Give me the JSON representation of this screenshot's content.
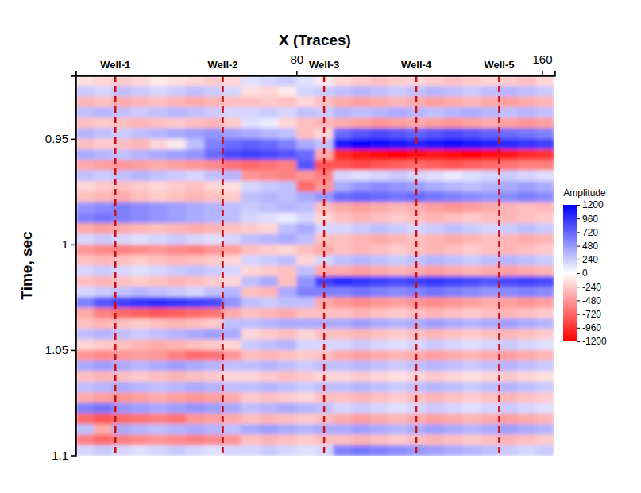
{
  "chart_data": {
    "type": "heatmap",
    "x_label": "X (Traces)",
    "y_label": "Time, sec",
    "xlim": [
      8,
      164
    ],
    "ylim": [
      0.92,
      1.1
    ],
    "xticks": [
      80,
      160
    ],
    "yticks": [
      0.95,
      1,
      1.05,
      1.1
    ],
    "x_bins": [
      8,
      14,
      20,
      26,
      32,
      38,
      44,
      50,
      56,
      62,
      68,
      74,
      80,
      86,
      92,
      98,
      104,
      110,
      116,
      122,
      128,
      134,
      140,
      146,
      152,
      158,
      164
    ],
    "y_bins": [
      0.92,
      0.925,
      0.93,
      0.935,
      0.94,
      0.945,
      0.95,
      0.955,
      0.96,
      0.965,
      0.97,
      0.975,
      0.98,
      0.985,
      0.99,
      0.995,
      1,
      1.005,
      1.01,
      1.015,
      1.02,
      1.025,
      1.03,
      1.035,
      1.04,
      1.045,
      1.05,
      1.055,
      1.06,
      1.065,
      1.07,
      1.075,
      1.08,
      1.085,
      1.09,
      1.095,
      1.1
    ],
    "z": [
      [
        -150,
        -200,
        -250,
        -200,
        -100,
        -150,
        -200,
        -250,
        -200,
        150,
        200,
        250,
        150,
        -100,
        -200,
        -250,
        -300,
        -250,
        -200,
        -250,
        -300,
        -250,
        -200,
        -250,
        -300,
        -200
      ],
      [
        250,
        200,
        300,
        250,
        200,
        250,
        300,
        250,
        200,
        -150,
        -200,
        -100,
        200,
        250,
        300,
        350,
        300,
        250,
        300,
        350,
        300,
        250,
        300,
        350,
        300,
        250
      ],
      [
        -350,
        -300,
        -400,
        -350,
        -300,
        -350,
        -400,
        -350,
        -300,
        -300,
        -250,
        -300,
        -200,
        -300,
        -400,
        -450,
        -400,
        -350,
        -400,
        -450,
        -400,
        -350,
        -400,
        -450,
        -400,
        -350
      ],
      [
        300,
        350,
        300,
        250,
        300,
        350,
        300,
        250,
        200,
        200,
        250,
        200,
        300,
        250,
        350,
        300,
        350,
        400,
        350,
        300,
        350,
        400,
        350,
        300,
        350,
        300
      ],
      [
        -300,
        -250,
        -300,
        -350,
        -300,
        -250,
        -300,
        -350,
        -250,
        150,
        100,
        -200,
        -300,
        -350,
        -400,
        -450,
        -500,
        -450,
        -400,
        -450,
        -500,
        -450,
        -400,
        -450,
        -500,
        -450
      ],
      [
        350,
        300,
        250,
        300,
        350,
        400,
        450,
        500,
        450,
        400,
        350,
        300,
        -300,
        -200,
        700,
        800,
        850,
        800,
        750,
        800,
        850,
        800,
        750,
        700,
        650,
        600
      ],
      [
        -300,
        -250,
        -300,
        -350,
        -200,
        -100,
        300,
        600,
        700,
        750,
        700,
        600,
        400,
        300,
        1100,
        1200,
        1150,
        1100,
        1050,
        1100,
        1150,
        1100,
        1050,
        1000,
        950,
        900
      ],
      [
        400,
        350,
        300,
        350,
        400,
        450,
        500,
        700,
        850,
        900,
        850,
        800,
        700,
        -400,
        -1000,
        -1100,
        -1150,
        -1200,
        -1150,
        -1100,
        -1150,
        -1200,
        -1150,
        -1100,
        -1000,
        -950
      ],
      [
        -400,
        -450,
        -500,
        -450,
        -400,
        -450,
        -500,
        -550,
        -650,
        -700,
        -650,
        -600,
        800,
        -800,
        -800,
        -850,
        -800,
        -750,
        -700,
        -750,
        -800,
        -750,
        -700,
        -650,
        -600,
        -600
      ],
      [
        300,
        250,
        300,
        350,
        300,
        250,
        200,
        300,
        350,
        -500,
        -550,
        -600,
        -500,
        -600,
        200,
        150,
        200,
        250,
        200,
        150,
        100,
        150,
        200,
        250,
        200,
        150
      ],
      [
        -200,
        -250,
        -300,
        -250,
        -200,
        -250,
        -300,
        -200,
        -150,
        200,
        250,
        300,
        -700,
        -500,
        400,
        500,
        550,
        500,
        450,
        400,
        350,
        300,
        350,
        400,
        450,
        400
      ],
      [
        -300,
        -350,
        -400,
        -300,
        -250,
        -300,
        -350,
        -300,
        -250,
        300,
        350,
        300,
        400,
        500,
        700,
        750,
        700,
        650,
        700,
        650,
        600,
        550,
        500,
        550,
        600,
        550
      ],
      [
        500,
        550,
        600,
        550,
        500,
        450,
        400,
        350,
        300,
        250,
        300,
        350,
        300,
        -300,
        -400,
        -450,
        -400,
        -350,
        -400,
        -450,
        -500,
        -450,
        -400,
        -350,
        -300,
        -350
      ],
      [
        600,
        650,
        600,
        550,
        500,
        450,
        400,
        350,
        300,
        200,
        150,
        100,
        200,
        -200,
        -300,
        -350,
        -300,
        -250,
        -300,
        -350,
        -300,
        -250,
        -300,
        -350,
        -300,
        -250
      ],
      [
        -400,
        -450,
        -400,
        -350,
        -300,
        -350,
        -400,
        -350,
        -300,
        -250,
        -200,
        300,
        400,
        200,
        200,
        250,
        300,
        250,
        200,
        250,
        300,
        250,
        200,
        250,
        300,
        250
      ],
      [
        200,
        250,
        200,
        150,
        200,
        250,
        200,
        150,
        200,
        300,
        350,
        400,
        300,
        -300,
        -300,
        -350,
        -400,
        -350,
        -300,
        -350,
        -400,
        -350,
        -300,
        -350,
        -400,
        -350
      ],
      [
        -500,
        -550,
        -600,
        -550,
        -500,
        -550,
        -600,
        -500,
        -450,
        -300,
        -250,
        -200,
        -300,
        -400,
        -300,
        -350,
        -300,
        -250,
        -300,
        -350,
        -300,
        -250,
        -300,
        -350,
        -300,
        -250
      ],
      [
        -300,
        -350,
        -300,
        -250,
        -300,
        -350,
        -300,
        -250,
        -200,
        200,
        250,
        300,
        -200,
        200,
        300,
        350,
        300,
        250,
        300,
        350,
        300,
        250,
        300,
        350,
        300,
        250
      ],
      [
        200,
        250,
        200,
        150,
        200,
        250,
        300,
        250,
        200,
        -200,
        -250,
        -300,
        300,
        -400,
        -400,
        -450,
        -400,
        -350,
        -400,
        -450,
        -400,
        -350,
        -400,
        -450,
        -400,
        -350
      ],
      [
        -300,
        -350,
        -300,
        -250,
        -300,
        -350,
        -300,
        -250,
        -200,
        300,
        400,
        -300,
        500,
        900,
        1000,
        950,
        900,
        850,
        900,
        950,
        900,
        850,
        800,
        850,
        900,
        850
      ],
      [
        200,
        250,
        300,
        350,
        300,
        250,
        200,
        300,
        350,
        -300,
        -350,
        400,
        600,
        600,
        600,
        650,
        600,
        550,
        600,
        650,
        600,
        550,
        500,
        550,
        600,
        550
      ],
      [
        600,
        800,
        900,
        950,
        1000,
        950,
        900,
        850,
        500,
        300,
        250,
        300,
        300,
        -400,
        -500,
        -550,
        -500,
        -450,
        -500,
        -550,
        -500,
        -450,
        -400,
        -450,
        -500,
        -450
      ],
      [
        -400,
        -600,
        -700,
        -750,
        -800,
        -750,
        -700,
        -650,
        -400,
        -300,
        -350,
        -400,
        -300,
        -300,
        -300,
        -350,
        -300,
        -250,
        -300,
        -350,
        -300,
        -250,
        -300,
        -350,
        -300,
        -250
      ],
      [
        -300,
        -350,
        -300,
        -250,
        -300,
        -350,
        -300,
        -250,
        300,
        300,
        350,
        400,
        400,
        400,
        400,
        450,
        400,
        350,
        400,
        450,
        400,
        350,
        400,
        450,
        400,
        350
      ],
      [
        300,
        350,
        300,
        250,
        300,
        350,
        400,
        450,
        400,
        -200,
        -250,
        -300,
        -200,
        -300,
        -300,
        -350,
        -300,
        -250,
        -300,
        -350,
        -300,
        -250,
        -300,
        -350,
        -300,
        -250
      ],
      [
        -200,
        -250,
        -300,
        -350,
        -400,
        -350,
        -300,
        -250,
        -200,
        250,
        300,
        350,
        200,
        200,
        200,
        250,
        200,
        150,
        200,
        250,
        200,
        150,
        200,
        250,
        200,
        150
      ],
      [
        -500,
        -550,
        -500,
        -450,
        -500,
        -600,
        -700,
        -650,
        -500,
        -300,
        -350,
        -300,
        -250,
        -300,
        -400,
        -450,
        -400,
        -350,
        -400,
        -450,
        -400,
        -350,
        -400,
        -450,
        -400,
        -350
      ],
      [
        400,
        450,
        400,
        350,
        400,
        450,
        400,
        350,
        300,
        300,
        350,
        300,
        250,
        300,
        300,
        350,
        300,
        250,
        300,
        350,
        300,
        250,
        300,
        350,
        300,
        250
      ],
      [
        -300,
        -350,
        -300,
        -250,
        -300,
        -350,
        -300,
        -250,
        -200,
        -200,
        -250,
        -300,
        -250,
        -200,
        -200,
        -250,
        -200,
        -150,
        -200,
        -250,
        -200,
        -150,
        -200,
        -250,
        -200,
        -150
      ],
      [
        300,
        350,
        400,
        350,
        300,
        350,
        400,
        350,
        300,
        300,
        350,
        300,
        250,
        300,
        300,
        350,
        300,
        250,
        300,
        350,
        300,
        250,
        300,
        350,
        300,
        250
      ],
      [
        -400,
        -450,
        -500,
        -450,
        -400,
        -450,
        -500,
        -450,
        -400,
        -250,
        -300,
        -250,
        -200,
        -300,
        -300,
        -350,
        -300,
        -250,
        -300,
        -350,
        -300,
        -250,
        -300,
        -350,
        -300,
        -250
      ],
      [
        600,
        650,
        500,
        450,
        400,
        450,
        500,
        450,
        400,
        300,
        350,
        400,
        350,
        300,
        200,
        250,
        200,
        150,
        200,
        250,
        200,
        150,
        200,
        250,
        200,
        150
      ],
      [
        -700,
        -800,
        -700,
        -650,
        -600,
        -650,
        -500,
        -450,
        -400,
        -300,
        -350,
        -300,
        -250,
        -300,
        -400,
        -450,
        -400,
        -350,
        -400,
        -450,
        -400,
        -350,
        -400,
        -450,
        -400,
        -350
      ],
      [
        300,
        -400,
        400,
        350,
        300,
        350,
        400,
        350,
        300,
        400,
        450,
        400,
        350,
        400,
        400,
        450,
        400,
        350,
        400,
        450,
        400,
        350,
        400,
        450,
        400,
        350
      ],
      [
        -600,
        -700,
        -600,
        -550,
        -500,
        -550,
        -600,
        -550,
        -500,
        -300,
        -350,
        -300,
        -250,
        -300,
        -300,
        -350,
        -300,
        -250,
        -300,
        -350,
        -300,
        -250,
        -300,
        -350,
        -300,
        -250
      ],
      [
        200,
        250,
        200,
        150,
        200,
        250,
        200,
        150,
        200,
        200,
        250,
        200,
        150,
        200,
        600,
        650,
        600,
        550,
        500,
        450,
        400,
        350,
        300,
        250,
        200,
        250
      ]
    ],
    "wells": [
      {
        "name": "Well-1",
        "x": 21
      },
      {
        "name": "Well-2",
        "x": 56
      },
      {
        "name": "Well-3",
        "x": 89
      },
      {
        "name": "Well-4",
        "x": 119
      },
      {
        "name": "Well-5",
        "x": 146
      }
    ],
    "colorbar": {
      "label": "Amplitude",
      "range": [
        -1200,
        1200
      ],
      "ticks": [
        1200,
        960,
        720,
        480,
        240,
        0,
        -240,
        -480,
        -720,
        -960,
        -1200
      ],
      "colors": [
        "#ff0000",
        "#ffffff",
        "#0000ff"
      ]
    }
  }
}
